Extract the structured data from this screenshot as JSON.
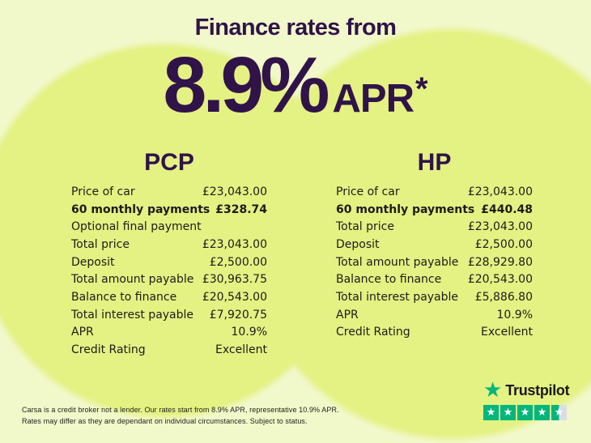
{
  "header": {
    "title": "Finance rates from",
    "rate": "8.9%",
    "apr_label": "APR",
    "asterisk": "*"
  },
  "tables": [
    {
      "heading": "PCP",
      "rows": [
        {
          "label": "Price of car",
          "value": "£23,043.00"
        },
        {
          "label": "60 monthly payments",
          "value": "£328.74"
        },
        {
          "label": "Optional final payment",
          "value": ""
        },
        {
          "label": "Total price",
          "value": "£23,043.00"
        },
        {
          "label": "Deposit",
          "value": "£2,500.00"
        },
        {
          "label": "Total amount payable",
          "value": "£30,963.75"
        },
        {
          "label": "Balance to finance",
          "value": "£20,543.00"
        },
        {
          "label": "Total interest payable",
          "value": "£7,920.75"
        },
        {
          "label": "APR",
          "value": "10.9%"
        },
        {
          "label": "Credit Rating",
          "value": "Excellent"
        }
      ]
    },
    {
      "heading": "HP",
      "rows": [
        {
          "label": "Price of car",
          "value": "£23,043.00"
        },
        {
          "label": "60 monthly payments",
          "value": "£440.48"
        },
        {
          "label": "Total price",
          "value": "£23,043.00"
        },
        {
          "label": "Deposit",
          "value": "£2,500.00"
        },
        {
          "label": "Total amount payable",
          "value": "£28,929.80"
        },
        {
          "label": "Balance to finance",
          "value": "£20,543.00"
        },
        {
          "label": "Total interest payable",
          "value": "£5,886.80"
        },
        {
          "label": "APR",
          "value": "10.9%"
        },
        {
          "label": "Credit Rating",
          "value": "Excellent"
        }
      ]
    }
  ],
  "disclaimer": {
    "line1": "Carsa is a credit broker not a lender. Our rates start from 8.9% APR, representative 10.9% APR.",
    "line2": "Rates may differ as they are dependant on individual circumstances. Subject to status."
  },
  "trustpilot": {
    "brand": "Trustpilot",
    "rating_stars": 4.5
  },
  "icons": {
    "star_glyph": "★"
  },
  "colors": {
    "background": "#f1f8c9",
    "circle": "#e4f183",
    "heading_purple": "#301349",
    "body_text": "#1c1c1a",
    "trustpilot_green": "#00b67a",
    "empty_star_gray": "#dcdce6"
  }
}
